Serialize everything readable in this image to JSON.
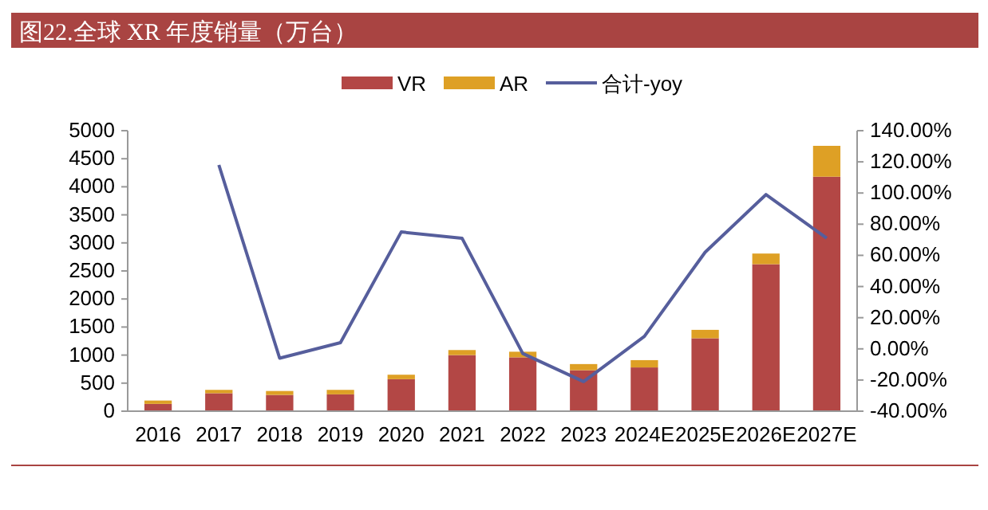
{
  "chart_data": {
    "type": "bar",
    "title": "图22.全球 XR 年度销量（万台）",
    "stacked": true,
    "legend": "top",
    "grid": false,
    "categories": [
      "2016",
      "2017",
      "2018",
      "2019",
      "2020",
      "2021",
      "2022",
      "2023",
      "2024E",
      "2025E",
      "2026E",
      "2027E"
    ],
    "series": [
      {
        "name": "VR",
        "color": "#b34745",
        "values": [
          130,
          320,
          290,
          300,
          570,
          1000,
          960,
          730,
          780,
          1300,
          2620,
          4180
        ]
      },
      {
        "name": "AR",
        "color": "#dea025",
        "values": [
          60,
          60,
          70,
          80,
          80,
          90,
          100,
          110,
          130,
          150,
          190,
          550
        ]
      },
      {
        "name": "合计-yoy",
        "type": "line",
        "axis": "y2",
        "color": "#565e9c",
        "values": [
          null,
          118,
          -6,
          4,
          75,
          71,
          -3,
          -21,
          8,
          62,
          99,
          71
        ]
      }
    ],
    "ylim": [
      0,
      5000
    ],
    "yticks": [
      0,
      500,
      1000,
      1500,
      2000,
      2500,
      3000,
      3500,
      4000,
      4500,
      5000
    ],
    "y2lim": [
      -40,
      140
    ],
    "y2ticks": [
      {
        "value": -40,
        "label": "-40.00%"
      },
      {
        "value": -20,
        "label": "-20.00%"
      },
      {
        "value": 0,
        "label": "0.00%"
      },
      {
        "value": 20,
        "label": "20.00%"
      },
      {
        "value": 40,
        "label": "40.00%"
      },
      {
        "value": 60,
        "label": "60.00%"
      },
      {
        "value": 80,
        "label": "80.00%"
      },
      {
        "value": 100,
        "label": "100.00%"
      },
      {
        "value": 120,
        "label": "120.00%"
      },
      {
        "value": 140,
        "label": "140.00%"
      }
    ]
  }
}
